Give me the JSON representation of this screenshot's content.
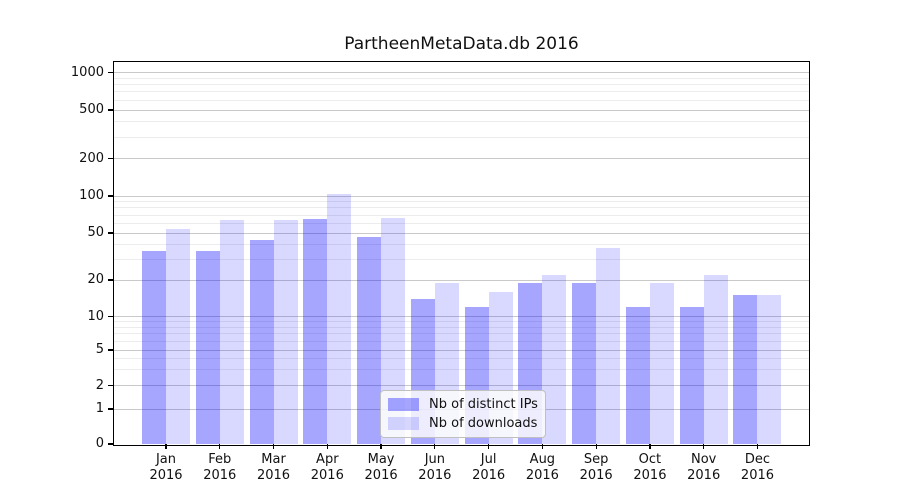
{
  "window": {
    "background": "#ffffff"
  },
  "chart_data": {
    "type": "bar",
    "title": "PartheenMetaData.db 2016",
    "categories": [
      "Jan",
      "Feb",
      "Mar",
      "Apr",
      "May",
      "Jun",
      "Jul",
      "Aug",
      "Sep",
      "Oct",
      "Nov",
      "Dec"
    ],
    "year_label": "2016",
    "series": [
      {
        "name": "Nb of distinct IPs",
        "color": "rgba(0,0,255,0.35)",
        "values": [
          35,
          35,
          44,
          65,
          46,
          14,
          12,
          19,
          19,
          12,
          12,
          15
        ]
      },
      {
        "name": "Nb of downloads",
        "color": "rgba(0,0,255,0.15)",
        "values": [
          54,
          64,
          64,
          103,
          66,
          19,
          16,
          22,
          37,
          19,
          22,
          15
        ]
      }
    ],
    "xlabel": "",
    "ylabel": "",
    "yscale": "symlog",
    "ylim": [
      0,
      1000
    ],
    "ytick_values": [
      1000,
      500,
      200,
      100,
      50,
      20,
      10,
      5,
      2,
      1,
      0
    ],
    "ytick_labels": [
      "1000",
      "500",
      "200",
      "100",
      "50",
      "20",
      "10",
      "5",
      "2",
      "1",
      "0"
    ],
    "minor_tick_values": [
      3,
      4,
      6,
      7,
      8,
      9,
      30,
      40,
      60,
      70,
      80,
      90,
      300,
      400,
      600,
      700,
      800,
      900
    ],
    "grid": true,
    "legend_position": "lower center",
    "colors": {
      "major_grid": "#c9c9c9",
      "minor_grid": "#ececec",
      "axis": "#000000",
      "legend_border": "#c0c0c0"
    }
  }
}
